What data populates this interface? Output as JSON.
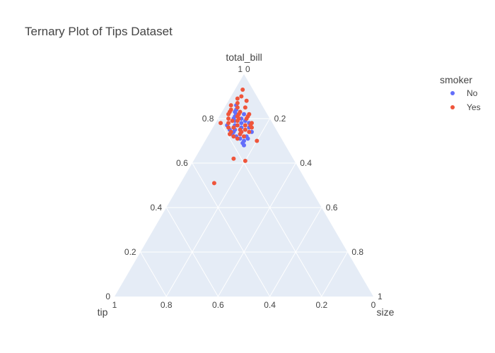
{
  "chart_data": {
    "type": "scatter",
    "subtype": "ternary",
    "title": "Ternary Plot of Tips Dataset",
    "axes": {
      "a": {
        "label": "total_bill",
        "ticks": [
          "0.2",
          "0.4",
          "0.6",
          "0.8",
          "1"
        ],
        "tick_values": [
          0.2,
          0.4,
          0.6,
          0.8,
          1
        ]
      },
      "b": {
        "label": "tip",
        "ticks": [
          "0.2",
          "0.4",
          "0.6",
          "0.8",
          "1"
        ],
        "tick_values": [
          0.2,
          0.4,
          0.6,
          0.8,
          1
        ]
      },
      "c": {
        "label": "size",
        "ticks": [
          "0.2",
          "0.4",
          "0.6",
          "0.8",
          "1"
        ],
        "tick_values": [
          0.2,
          0.4,
          0.6,
          0.8,
          1
        ]
      },
      "zero_label": "0"
    },
    "grid": true,
    "background": "#e5ecf6",
    "gridline_color": "#ffffff",
    "legend": {
      "title": "smoker",
      "placement": "top-right"
    },
    "series": [
      {
        "name": "No",
        "color": "#636efa",
        "points": [
          {
            "a": 0.86,
            "b": 0.1,
            "c": 0.04
          },
          {
            "a": 0.84,
            "b": 0.11,
            "c": 0.05
          },
          {
            "a": 0.82,
            "b": 0.12,
            "c": 0.06
          },
          {
            "a": 0.8,
            "b": 0.11,
            "c": 0.09
          },
          {
            "a": 0.79,
            "b": 0.14,
            "c": 0.07
          },
          {
            "a": 0.78,
            "b": 0.12,
            "c": 0.1
          },
          {
            "a": 0.77,
            "b": 0.15,
            "c": 0.08
          },
          {
            "a": 0.76,
            "b": 0.13,
            "c": 0.11
          },
          {
            "a": 0.75,
            "b": 0.16,
            "c": 0.09
          },
          {
            "a": 0.74,
            "b": 0.14,
            "c": 0.12
          },
          {
            "a": 0.73,
            "b": 0.15,
            "c": 0.12
          },
          {
            "a": 0.72,
            "b": 0.13,
            "c": 0.15
          },
          {
            "a": 0.71,
            "b": 0.16,
            "c": 0.13
          },
          {
            "a": 0.7,
            "b": 0.15,
            "c": 0.15
          },
          {
            "a": 0.69,
            "b": 0.16,
            "c": 0.15
          },
          {
            "a": 0.68,
            "b": 0.16,
            "c": 0.16
          },
          {
            "a": 0.78,
            "b": 0.09,
            "c": 0.13
          },
          {
            "a": 0.76,
            "b": 0.1,
            "c": 0.14
          },
          {
            "a": 0.74,
            "b": 0.1,
            "c": 0.16
          },
          {
            "a": 0.8,
            "b": 0.14,
            "c": 0.06
          },
          {
            "a": 0.82,
            "b": 0.09,
            "c": 0.09
          },
          {
            "a": 0.75,
            "b": 0.18,
            "c": 0.07
          },
          {
            "a": 0.77,
            "b": 0.18,
            "c": 0.05
          },
          {
            "a": 0.73,
            "b": 0.18,
            "c": 0.09
          },
          {
            "a": 0.81,
            "b": 0.13,
            "c": 0.06
          },
          {
            "a": 0.79,
            "b": 0.1,
            "c": 0.11
          },
          {
            "a": 0.74,
            "b": 0.17,
            "c": 0.09
          },
          {
            "a": 0.72,
            "b": 0.17,
            "c": 0.11
          },
          {
            "a": 0.71,
            "b": 0.13,
            "c": 0.16
          },
          {
            "a": 0.83,
            "b": 0.12,
            "c": 0.05
          }
        ]
      },
      {
        "name": "Yes",
        "color": "#ef553b",
        "points": [
          {
            "a": 0.93,
            "b": 0.04,
            "c": 0.03
          },
          {
            "a": 0.9,
            "b": 0.06,
            "c": 0.04
          },
          {
            "a": 0.89,
            "b": 0.08,
            "c": 0.03
          },
          {
            "a": 0.88,
            "b": 0.05,
            "c": 0.07
          },
          {
            "a": 0.87,
            "b": 0.09,
            "c": 0.04
          },
          {
            "a": 0.86,
            "b": 0.12,
            "c": 0.02
          },
          {
            "a": 0.85,
            "b": 0.07,
            "c": 0.08
          },
          {
            "a": 0.84,
            "b": 0.13,
            "c": 0.03
          },
          {
            "a": 0.83,
            "b": 0.1,
            "c": 0.07
          },
          {
            "a": 0.82,
            "b": 0.15,
            "c": 0.03
          },
          {
            "a": 0.82,
            "b": 0.07,
            "c": 0.11
          },
          {
            "a": 0.81,
            "b": 0.12,
            "c": 0.07
          },
          {
            "a": 0.8,
            "b": 0.16,
            "c": 0.04
          },
          {
            "a": 0.8,
            "b": 0.09,
            "c": 0.11
          },
          {
            "a": 0.79,
            "b": 0.13,
            "c": 0.08
          },
          {
            "a": 0.78,
            "b": 0.17,
            "c": 0.05
          },
          {
            "a": 0.78,
            "b": 0.08,
            "c": 0.14
          },
          {
            "a": 0.77,
            "b": 0.14,
            "c": 0.09
          },
          {
            "a": 0.77,
            "b": 0.11,
            "c": 0.12
          },
          {
            "a": 0.76,
            "b": 0.18,
            "c": 0.06
          },
          {
            "a": 0.76,
            "b": 0.09,
            "c": 0.15
          },
          {
            "a": 0.75,
            "b": 0.14,
            "c": 0.11
          },
          {
            "a": 0.75,
            "b": 0.12,
            "c": 0.13
          },
          {
            "a": 0.74,
            "b": 0.18,
            "c": 0.08
          },
          {
            "a": 0.74,
            "b": 0.11,
            "c": 0.15
          },
          {
            "a": 0.73,
            "b": 0.15,
            "c": 0.12
          },
          {
            "a": 0.73,
            "b": 0.19,
            "c": 0.08
          },
          {
            "a": 0.72,
            "b": 0.14,
            "c": 0.14
          },
          {
            "a": 0.72,
            "b": 0.18,
            "c": 0.1
          },
          {
            "a": 0.71,
            "b": 0.17,
            "c": 0.12
          },
          {
            "a": 0.79,
            "b": 0.15,
            "c": 0.06
          },
          {
            "a": 0.81,
            "b": 0.08,
            "c": 0.11
          },
          {
            "a": 0.83,
            "b": 0.14,
            "c": 0.03
          },
          {
            "a": 0.78,
            "b": 0.2,
            "c": 0.02
          },
          {
            "a": 0.76,
            "b": 0.16,
            "c": 0.08
          },
          {
            "a": 0.8,
            "b": 0.12,
            "c": 0.08
          },
          {
            "a": 0.82,
            "b": 0.11,
            "c": 0.07
          },
          {
            "a": 0.74,
            "b": 0.14,
            "c": 0.12
          },
          {
            "a": 0.77,
            "b": 0.09,
            "c": 0.14
          },
          {
            "a": 0.85,
            "b": 0.1,
            "c": 0.05
          },
          {
            "a": 0.7,
            "b": 0.1,
            "c": 0.2
          },
          {
            "a": 0.62,
            "b": 0.23,
            "c": 0.15
          },
          {
            "a": 0.61,
            "b": 0.19,
            "c": 0.2
          },
          {
            "a": 0.51,
            "b": 0.36,
            "c": 0.13
          }
        ]
      }
    ]
  }
}
